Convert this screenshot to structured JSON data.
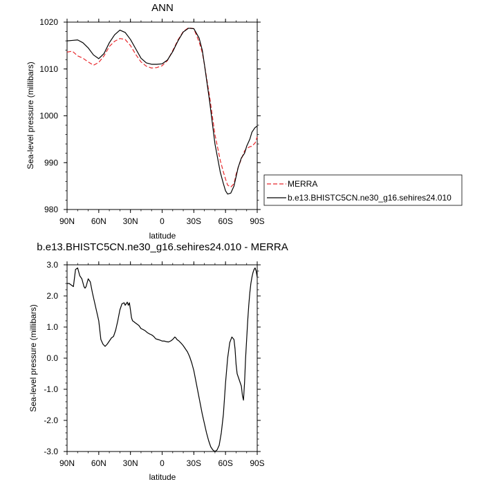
{
  "chart_data": [
    {
      "type": "line",
      "title": "ANN",
      "xlabel": "latitude",
      "ylabel": "Sea-level pressure (millibars)",
      "xlim": [
        90,
        -90
      ],
      "ylim": [
        980,
        1020
      ],
      "x_tick_values": [
        90,
        60,
        30,
        0,
        -30,
        -60,
        -90
      ],
      "x_tick_labels": [
        "90N",
        "60N",
        "30N",
        "0",
        "30S",
        "60S",
        "90S"
      ],
      "y_tick_values": [
        980,
        990,
        1000,
        1010,
        1020
      ],
      "y_tick_labels": [
        "980",
        "990",
        "1000",
        "1010",
        "1020"
      ],
      "legend_position": "right",
      "series": [
        {
          "name": "MERRA",
          "color": "#e8262a",
          "dash": "dashed",
          "x": [
            90,
            85,
            80,
            75,
            70,
            65,
            60,
            55,
            50,
            45,
            40,
            35,
            30,
            25,
            20,
            15,
            10,
            5,
            0,
            -5,
            -10,
            -15,
            -20,
            -25,
            -30,
            -35,
            -38,
            -40,
            -45,
            -50,
            -55,
            -58,
            -60,
            -62,
            -65,
            -68,
            -70,
            -72,
            -75,
            -78,
            -80,
            -83,
            -85,
            -88,
            -90
          ],
          "values": [
            1013.6,
            1013.8,
            1012.8,
            1012.3,
            1011.5,
            1010.8,
            1011.4,
            1012.8,
            1014.8,
            1015.9,
            1016.5,
            1016.3,
            1015.0,
            1013.1,
            1011.5,
            1010.6,
            1010.2,
            1010.3,
            1010.7,
            1011.8,
            1013.9,
            1016.2,
            1018.0,
            1018.8,
            1018.6,
            1015.8,
            1013.5,
            1011.0,
            1004.0,
            996.0,
            990.5,
            988.0,
            986.5,
            985.2,
            984.8,
            985.5,
            987.5,
            989.0,
            990.8,
            992.5,
            993.0,
            993.4,
            993.5,
            994.2,
            995.5
          ]
        },
        {
          "name": "b.e13.BHISTC5CN.ne30_g16.sehires24.010",
          "color": "#000000",
          "dash": "solid",
          "x": [
            90,
            85,
            80,
            75,
            70,
            65,
            60,
            55,
            50,
            45,
            40,
            35,
            30,
            25,
            20,
            15,
            10,
            5,
            0,
            -5,
            -10,
            -15,
            -20,
            -25,
            -30,
            -35,
            -38,
            -40,
            -45,
            -50,
            -55,
            -58,
            -60,
            -62,
            -65,
            -68,
            -70,
            -72,
            -75,
            -78,
            -80,
            -83,
            -85,
            -88,
            -90
          ],
          "values": [
            1016.0,
            1016.1,
            1016.2,
            1015.6,
            1014.5,
            1013.0,
            1012.2,
            1013.3,
            1015.6,
            1017.3,
            1018.3,
            1017.8,
            1016.3,
            1014.3,
            1012.3,
            1011.3,
            1011.0,
            1011.0,
            1011.1,
            1011.9,
            1013.7,
            1016.0,
            1017.9,
            1018.7,
            1018.6,
            1016.6,
            1014.0,
            1011.0,
            1003.0,
            994.0,
            988.0,
            985.5,
            984.0,
            983.3,
            983.5,
            985.0,
            987.0,
            989.0,
            991.0,
            992.0,
            993.5,
            995.0,
            996.5,
            997.5,
            997.8
          ]
        }
      ]
    },
    {
      "type": "line",
      "title": "b.e13.BHISTC5CN.ne30_g16.sehires24.010 - MERRA",
      "xlabel": "latitude",
      "ylabel": "Sea-level pressure (millibars)",
      "xlim": [
        90,
        -90
      ],
      "ylim": [
        -3.0,
        3.0
      ],
      "x_tick_values": [
        90,
        60,
        30,
        0,
        -30,
        -60,
        -90
      ],
      "x_tick_labels": [
        "90N",
        "60N",
        "30N",
        "0",
        "30S",
        "60S",
        "90S"
      ],
      "y_tick_values": [
        -3.0,
        -2.0,
        -1.0,
        0.0,
        1.0,
        2.0,
        3.0
      ],
      "y_tick_labels": [
        "-3.0",
        "-2.0",
        "-1.0",
        "0.0",
        "1.0",
        "2.0",
        "3.0"
      ],
      "series": [
        {
          "color": "#000000",
          "dash": "solid",
          "x": [
            90,
            88,
            86,
            84,
            82,
            80,
            78,
            76,
            74,
            73,
            72,
            70,
            68,
            66,
            64,
            62,
            60,
            58,
            56,
            54,
            52,
            50,
            48,
            46,
            44,
            42,
            40,
            38,
            36,
            35,
            34,
            33,
            32,
            31,
            30,
            29,
            28,
            27,
            26,
            24,
            22,
            20,
            18,
            16,
            14,
            12,
            10,
            8,
            6,
            4,
            2,
            0,
            -2,
            -4,
            -6,
            -8,
            -10,
            -12,
            -13,
            -14,
            -16,
            -18,
            -20,
            -22,
            -24,
            -26,
            -28,
            -30,
            -32,
            -34,
            -36,
            -38,
            -40,
            -42,
            -44,
            -46,
            -48,
            -50,
            -52,
            -54,
            -56,
            -58,
            -60,
            -62,
            -64,
            -66,
            -68,
            -69,
            -70,
            -71,
            -72,
            -73,
            -74,
            -75,
            -76,
            -77,
            -78,
            -79,
            -80,
            -81,
            -82,
            -83,
            -84,
            -85,
            -86,
            -87,
            -88,
            -89,
            -90
          ],
          "values": [
            2.4,
            2.4,
            2.35,
            2.3,
            2.85,
            2.9,
            2.65,
            2.55,
            2.3,
            2.25,
            2.3,
            2.55,
            2.45,
            2.1,
            1.8,
            1.5,
            1.2,
            0.6,
            0.45,
            0.38,
            0.45,
            0.55,
            0.65,
            0.7,
            0.9,
            1.2,
            1.55,
            1.75,
            1.78,
            1.7,
            1.75,
            1.8,
            1.7,
            1.78,
            1.55,
            1.3,
            1.2,
            1.18,
            1.15,
            1.1,
            1.05,
            0.95,
            0.92,
            0.88,
            0.82,
            0.78,
            0.75,
            0.7,
            0.62,
            0.6,
            0.58,
            0.55,
            0.55,
            0.53,
            0.52,
            0.55,
            0.6,
            0.68,
            0.65,
            0.6,
            0.55,
            0.48,
            0.4,
            0.3,
            0.2,
            0.05,
            -0.15,
            -0.4,
            -0.75,
            -1.1,
            -1.45,
            -1.8,
            -2.1,
            -2.4,
            -2.65,
            -2.85,
            -2.95,
            -3.0,
            -2.95,
            -2.8,
            -2.4,
            -1.8,
            -0.8,
            0.0,
            0.5,
            0.68,
            0.6,
            0.3,
            -0.2,
            -0.5,
            -0.6,
            -0.7,
            -0.8,
            -0.9,
            -1.2,
            -1.35,
            -0.8,
            0.0,
            0.6,
            1.2,
            1.7,
            2.1,
            2.4,
            2.6,
            2.75,
            2.85,
            2.9,
            2.8,
            2.6
          ]
        }
      ]
    }
  ]
}
